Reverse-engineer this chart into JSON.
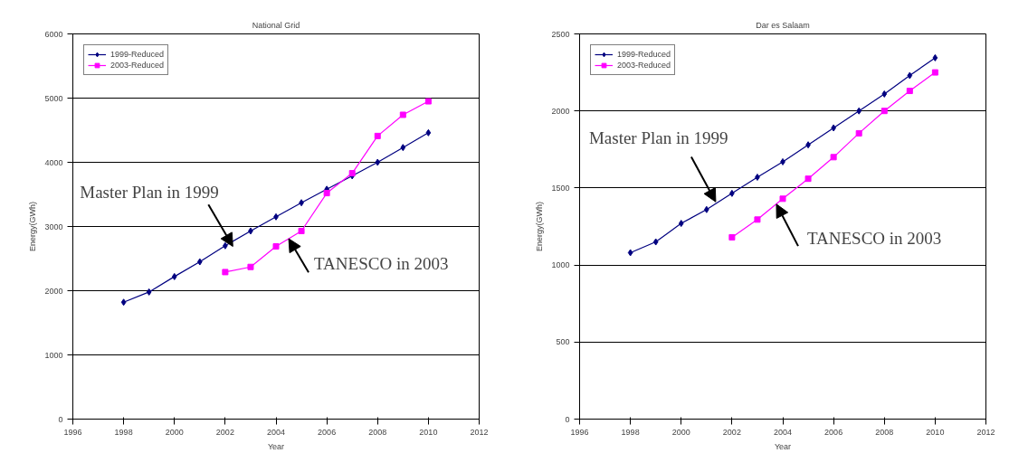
{
  "chart_data": [
    {
      "type": "line",
      "title": "National Grid",
      "xlabel": "Year",
      "ylabel": "Energy(GWh)",
      "xlim": [
        1996,
        2012
      ],
      "xticks": [
        1996,
        1998,
        2000,
        2002,
        2004,
        2006,
        2008,
        2010,
        2012
      ],
      "ylim": [
        0,
        6000
      ],
      "yticks": [
        0,
        1000,
        2000,
        3000,
        4000,
        5000,
        6000
      ],
      "grid": "y",
      "legend": "top left",
      "series": [
        {
          "name": "1999-Reduced",
          "color": "#000080",
          "marker": "diamond",
          "x": [
            1998,
            1999,
            2000,
            2001,
            2002,
            2003,
            2004,
            2005,
            2006,
            2007,
            2008,
            2009,
            2010
          ],
          "values": [
            1820,
            1980,
            2220,
            2450,
            2700,
            2930,
            3150,
            3370,
            3580,
            3790,
            4000,
            4230,
            4460
          ]
        },
        {
          "name": "2003-Reduced",
          "color": "#ff00ff",
          "marker": "square",
          "x": [
            2002,
            2003,
            2004,
            2005,
            2006,
            2007,
            2008,
            2009,
            2010
          ],
          "values": [
            2290,
            2370,
            2690,
            2930,
            3520,
            3830,
            4410,
            4740,
            4950
          ]
        }
      ],
      "annotations": [
        {
          "text": "Master Plan in 1999",
          "x": 2002.3,
          "y": 2690
        },
        {
          "text": "TANESCO in 2003",
          "x": 2004.5,
          "y": 2810
        }
      ]
    },
    {
      "type": "line",
      "title": "Dar es Salaam",
      "xlabel": "Year",
      "ylabel": "Energy(GWh)",
      "xlim": [
        1996,
        2012
      ],
      "xticks": [
        1996,
        1998,
        2000,
        2002,
        2004,
        2006,
        2008,
        2010,
        2012
      ],
      "ylim": [
        0,
        2500
      ],
      "yticks": [
        0,
        500,
        1000,
        1500,
        2000,
        2500
      ],
      "grid": "y",
      "legend": "top left",
      "series": [
        {
          "name": "1999-Reduced",
          "color": "#000080",
          "marker": "diamond",
          "x": [
            1998,
            1999,
            2000,
            2001,
            2002,
            2003,
            2004,
            2005,
            2006,
            2007,
            2008,
            2009,
            2010
          ],
          "values": [
            1080,
            1150,
            1270,
            1360,
            1465,
            1570,
            1670,
            1780,
            1890,
            2000,
            2110,
            2230,
            2345
          ]
        },
        {
          "name": "2003-Reduced",
          "color": "#ff00ff",
          "marker": "square",
          "x": [
            2002,
            2003,
            2004,
            2005,
            2006,
            2007,
            2008,
            2009,
            2010
          ],
          "values": [
            1180,
            1295,
            1430,
            1560,
            1700,
            1855,
            2000,
            2130,
            2250
          ]
        }
      ],
      "annotations": [
        {
          "text": "Master Plan in 1999",
          "x": 2001.36,
          "y": 1410
        },
        {
          "text": "TANESCO in 2003",
          "x": 2003.75,
          "y": 1395
        }
      ]
    }
  ]
}
